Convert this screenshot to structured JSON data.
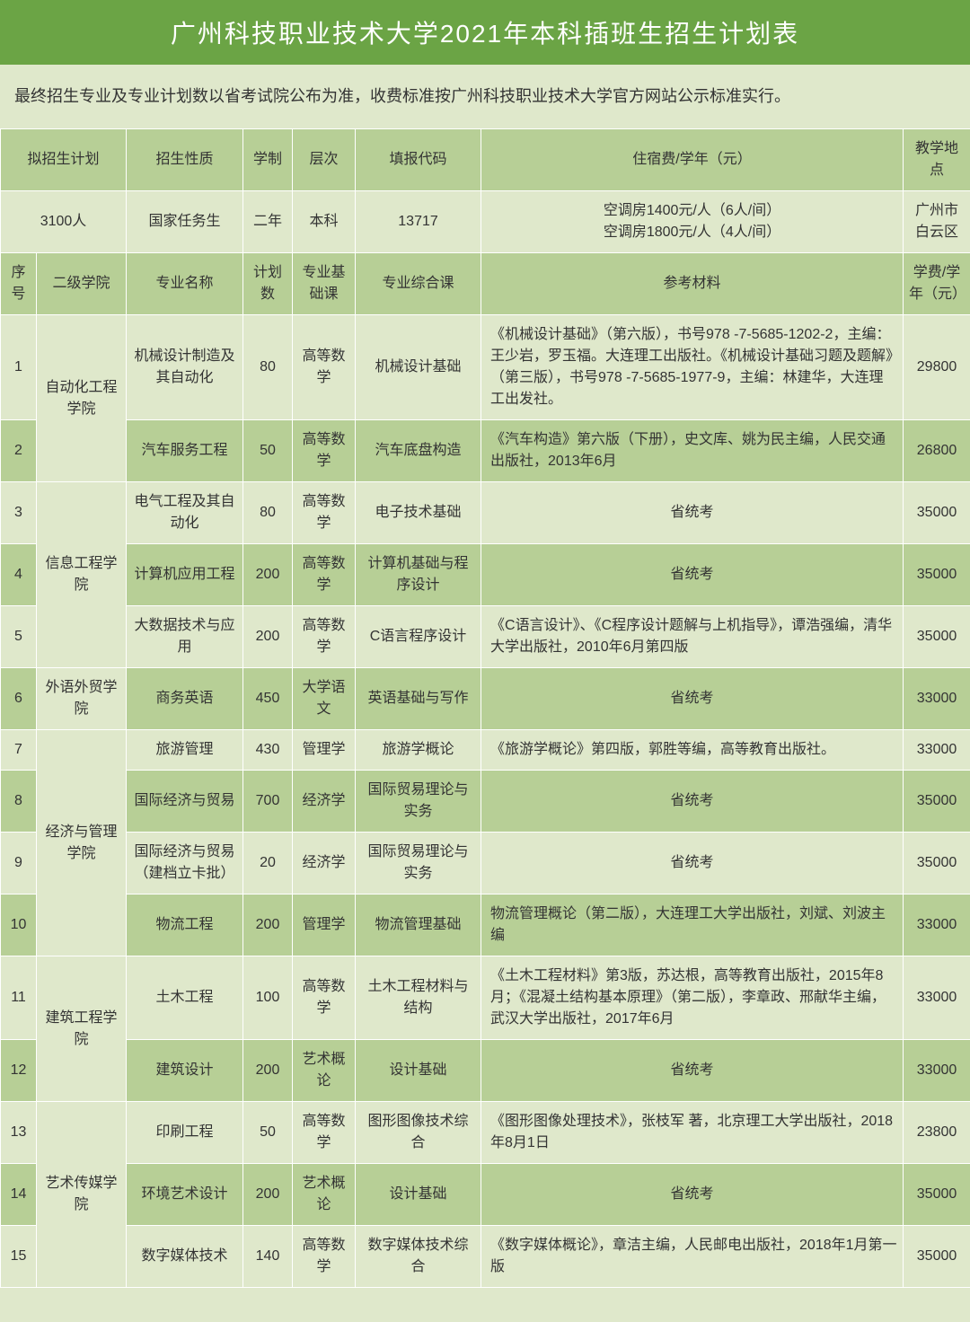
{
  "title": "广州科技职业技术大学2021年本科插班生招生计划表",
  "subtitle": "最终招生专业及专业计划数以省考试院公布为准，收费标准按广州科技职业技术大学官方网站公示标准实行。",
  "top_header": {
    "c1": "拟招生计划",
    "c2": "招生性质",
    "c3": "学制",
    "c4": "层次",
    "c5": "填报代码",
    "c6": "住宿费/学年（元）",
    "c7": "教学地点"
  },
  "top_values": {
    "c1": "3100人",
    "c2": "国家任务生",
    "c3": "二年",
    "c4": "本科",
    "c5": "13717",
    "c6": "空调房1400元/人（6人/间）\n空调房1800元/人（4人/间）",
    "c7": "广州市白云区"
  },
  "main_header": {
    "seq": "序号",
    "dept": "二级学院",
    "major": "专业名称",
    "plan": "计划数",
    "base": "专业基础课",
    "comp": "专业综合课",
    "ref": "参考材料",
    "fee": "学费/学年（元）"
  },
  "rows": [
    {
      "n": "1",
      "dept": "自动化工程学院",
      "deptRowspan": 2,
      "major": "机械设计制造及其自动化",
      "plan": "80",
      "base": "高等数学",
      "comp": "机械设计基础",
      "ref": "《机械设计基础》（第六版），书号978 -7-5685-1202-2，主编：王少岩，罗玉福。大连理工出版社。《机械设计基础习题及题解》（第三版），书号978 -7-5685-1977-9，主编：林建华，大连理工出发社。",
      "fee": "29800",
      "cls": "row-light",
      "refAlign": "left"
    },
    {
      "n": "2",
      "major": "汽车服务工程",
      "plan": "50",
      "base": "高等数学",
      "comp": "汽车底盘构造",
      "ref": "《汽车构造》第六版（下册），史文库、姚为民主编，人民交通出版社，2013年6月",
      "fee": "26800",
      "cls": "row-dark",
      "refAlign": "left"
    },
    {
      "n": "3",
      "dept": "信息工程学院",
      "deptRowspan": 3,
      "major": "电气工程及其自动化",
      "plan": "80",
      "base": "高等数学",
      "comp": "电子技术基础",
      "ref": "省统考",
      "fee": "35000",
      "cls": "row-light",
      "refAlign": "center"
    },
    {
      "n": "4",
      "major": "计算机应用工程",
      "plan": "200",
      "base": "高等数学",
      "comp": "计算机基础与程序设计",
      "ref": "省统考",
      "fee": "35000",
      "cls": "row-dark",
      "refAlign": "center"
    },
    {
      "n": "5",
      "major": "大数据技术与应用",
      "plan": "200",
      "base": "高等数学",
      "comp": "C语言程序设计",
      "ref": "《C语言设计》、《C程序设计题解与上机指导》，谭浩强编，清华大学出版社，2010年6月第四版",
      "fee": "35000",
      "cls": "row-light",
      "refAlign": "left"
    },
    {
      "n": "6",
      "dept": "外语外贸学院",
      "deptRowspan": 1,
      "major": "商务英语",
      "plan": "450",
      "base": "大学语文",
      "comp": "英语基础与写作",
      "ref": "省统考",
      "fee": "33000",
      "cls": "row-dark",
      "refAlign": "center"
    },
    {
      "n": "7",
      "dept": "经济与管理学院",
      "deptRowspan": 4,
      "major": "旅游管理",
      "plan": "430",
      "base": "管理学",
      "comp": "旅游学概论",
      "ref": "《旅游学概论》第四版，郭胜等编，高等教育出版社。",
      "fee": "33000",
      "cls": "row-light",
      "refAlign": "left"
    },
    {
      "n": "8",
      "major": "国际经济与贸易",
      "plan": "700",
      "base": "经济学",
      "comp": "国际贸易理论与实务",
      "ref": "省统考",
      "fee": "35000",
      "cls": "row-dark",
      "refAlign": "center"
    },
    {
      "n": "9",
      "major": "国际经济与贸易（建档立卡批）",
      "plan": "20",
      "base": "经济学",
      "comp": "国际贸易理论与实务",
      "ref": "省统考",
      "fee": "35000",
      "cls": "row-light",
      "refAlign": "center"
    },
    {
      "n": "10",
      "major": "物流工程",
      "plan": "200",
      "base": "管理学",
      "comp": "物流管理基础",
      "ref": "物流管理概论（第二版），大连理工大学出版社，刘斌、刘波主编",
      "fee": "33000",
      "cls": "row-dark",
      "refAlign": "left"
    },
    {
      "n": "11",
      "dept": "建筑工程学院",
      "deptRowspan": 2,
      "major": "土木工程",
      "plan": "100",
      "base": "高等数学",
      "comp": "土木工程材料与结构",
      "ref": "《土木工程材料》第3版，苏达根，高等教育出版社，2015年8月；《混凝土结构基本原理》（第二版），李章政、邢献华主编，武汉大学出版社，2017年6月",
      "fee": "33000",
      "cls": "row-light",
      "refAlign": "left"
    },
    {
      "n": "12",
      "major": "建筑设计",
      "plan": "200",
      "base": "艺术概论",
      "comp": "设计基础",
      "ref": "省统考",
      "fee": "33000",
      "cls": "row-dark",
      "refAlign": "center"
    },
    {
      "n": "13",
      "dept": "艺术传媒学院",
      "deptRowspan": 3,
      "major": "印刷工程",
      "plan": "50",
      "base": "高等数学",
      "comp": "图形图像技术综合",
      "ref": "《图形图像处理技术》，张枝军 著，北京理工大学出版社，2018年8月1日",
      "fee": "23800",
      "cls": "row-light",
      "refAlign": "left"
    },
    {
      "n": "14",
      "major": "环境艺术设计",
      "plan": "200",
      "base": "艺术概论",
      "comp": "设计基础",
      "ref": "省统考",
      "fee": "35000",
      "cls": "row-dark",
      "refAlign": "center"
    },
    {
      "n": "15",
      "major": "数字媒体技术",
      "plan": "140",
      "base": "高等数学",
      "comp": "数字媒体技术综合",
      "ref": "《数字媒体概论》，章洁主编，人民邮电出版社，2018年1月第一版",
      "fee": "35000",
      "cls": "row-light",
      "refAlign": "left"
    }
  ]
}
